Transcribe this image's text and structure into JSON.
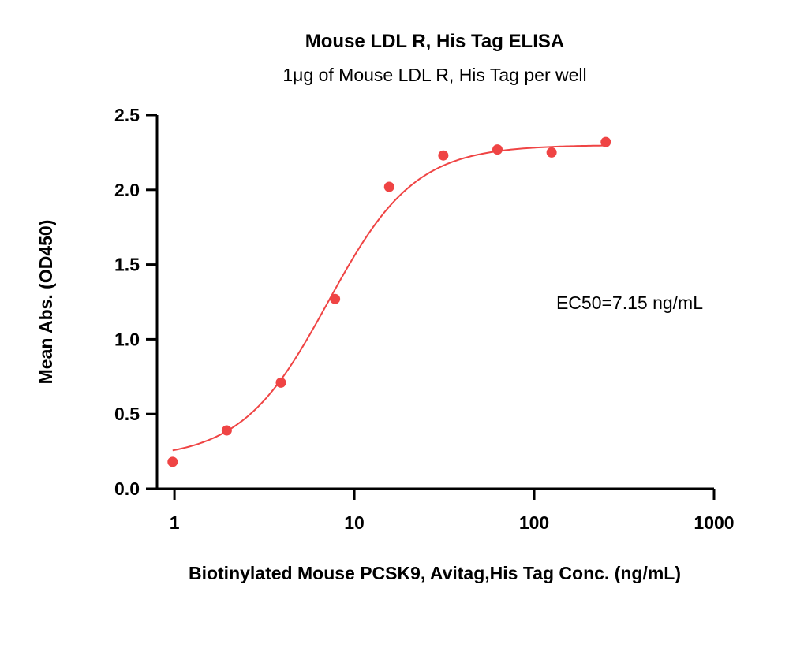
{
  "chart_data": {
    "type": "scatter",
    "title": "Mouse LDL R, His Tag  ELISA",
    "subtitle": "1μg of Mouse LDL R, His Tag  per well",
    "xlabel": "Biotinylated Mouse PCSK9, Avitag,His Tag Conc. (ng/mL)",
    "ylabel": "Mean Abs. (OD450)",
    "xscale": "log",
    "xlim": [
      0.8,
      1000
    ],
    "ylim": [
      0,
      2.5
    ],
    "xticks": [
      1,
      10,
      100,
      1000
    ],
    "xtick_labels": [
      "1",
      "10",
      "100",
      "1000"
    ],
    "yticks": [
      0,
      0.5,
      1,
      1.5,
      2,
      2.5
    ],
    "ytick_labels": [
      "0.0",
      "0.5",
      "1.0",
      "1.5",
      "2.0",
      "2.5"
    ],
    "grid": false,
    "series": [
      {
        "color": "#ef4444",
        "x": [
          0.977,
          1.953,
          3.906,
          7.813,
          15.625,
          31.25,
          62.5,
          125,
          250
        ],
        "y": [
          0.18,
          0.39,
          0.71,
          1.27,
          2.02,
          2.23,
          2.27,
          2.25,
          2.32
        ],
        "fit": {
          "model": "4PL",
          "bottom": 0.2,
          "top": 2.3,
          "ec50": 7.15,
          "hill": 1.8,
          "x_range": [
            0.977,
            250
          ]
        }
      }
    ],
    "annotations": [
      {
        "text": "EC50=7.15 ng/mL"
      }
    ]
  }
}
